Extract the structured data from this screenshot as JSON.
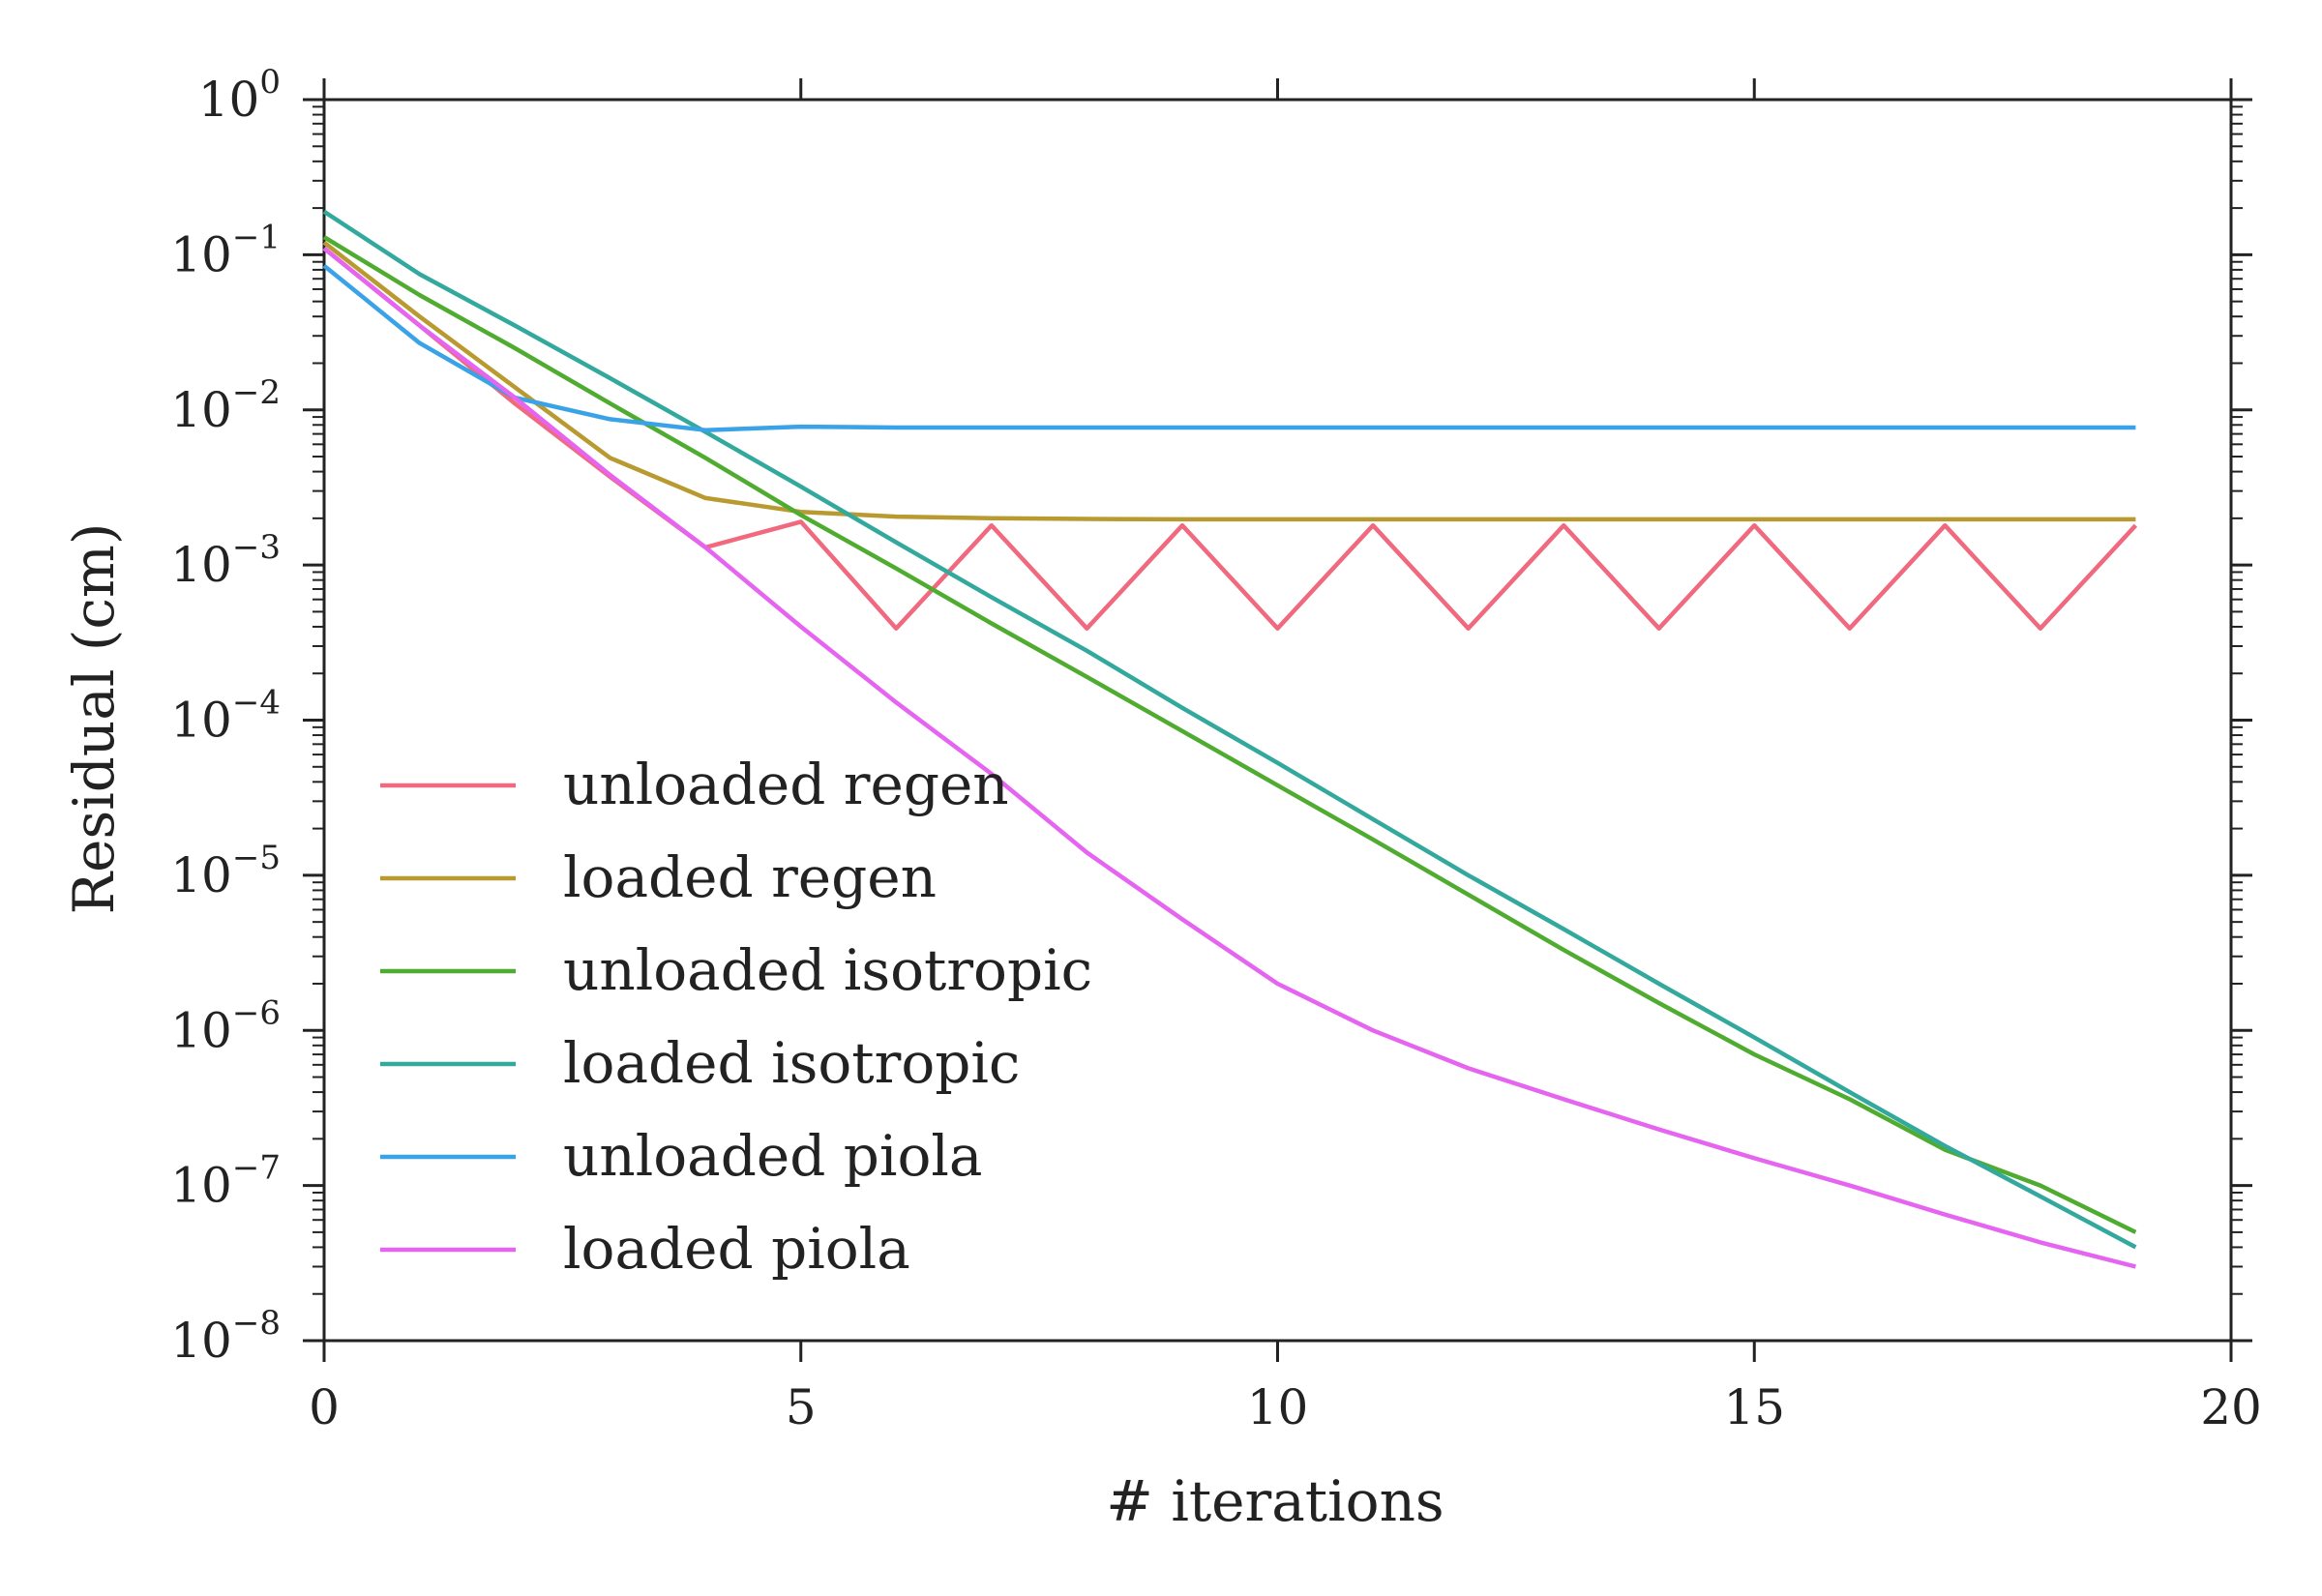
{
  "chart_data": {
    "type": "line",
    "xlabel": "# iterations",
    "ylabel": "Residual (cm)",
    "xlim": [
      0,
      20
    ],
    "ylim": [
      1e-08,
      1
    ],
    "yscale": "log",
    "xticks": [
      0,
      5,
      10,
      15,
      20
    ],
    "xtick_labels": [
      "0",
      "5",
      "10",
      "15",
      "20"
    ],
    "yticks": [
      {
        "base": "10",
        "exp": "0",
        "value": 1
      },
      {
        "base": "10",
        "exp": "−1",
        "value": 0.1
      },
      {
        "base": "10",
        "exp": "−2",
        "value": 0.01
      },
      {
        "base": "10",
        "exp": "−3",
        "value": 0.001
      },
      {
        "base": "10",
        "exp": "−4",
        "value": 0.0001
      },
      {
        "base": "10",
        "exp": "−5",
        "value": 1e-05
      },
      {
        "base": "10",
        "exp": "−6",
        "value": 1e-06
      },
      {
        "base": "10",
        "exp": "−7",
        "value": 1e-07
      },
      {
        "base": "10",
        "exp": "−8",
        "value": 1e-08
      }
    ],
    "grid": false,
    "legend_position": "lower-left",
    "x": [
      0,
      1,
      2,
      3,
      4,
      5,
      6,
      7,
      8,
      9,
      10,
      11,
      12,
      13,
      14,
      15,
      16,
      17,
      18,
      19
    ],
    "series": [
      {
        "name": "unloaded regen",
        "color": "#f0697f",
        "values": [
          0.11,
          0.035,
          0.011,
          0.0037,
          0.0013,
          0.0019,
          0.00039,
          0.0018,
          0.00039,
          0.0018,
          0.00039,
          0.0018,
          0.00039,
          0.0018,
          0.00039,
          0.0018,
          0.00039,
          0.0018,
          0.00039,
          0.0018
        ]
      },
      {
        "name": "loaded regen",
        "color": "#b89a30",
        "values": [
          0.12,
          0.04,
          0.014,
          0.0049,
          0.0027,
          0.0022,
          0.00205,
          0.002,
          0.00198,
          0.00197,
          0.00197,
          0.00197,
          0.00197,
          0.00197,
          0.00197,
          0.00197,
          0.00197,
          0.00197,
          0.00197,
          0.00197
        ]
      },
      {
        "name": "unloaded isotropic",
        "color": "#4fac30",
        "values": [
          0.13,
          0.055,
          0.025,
          0.011,
          0.0049,
          0.0021,
          0.00095,
          0.00042,
          0.00019,
          8.5e-05,
          3.8e-05,
          1.7e-05,
          7.5e-06,
          3.3e-06,
          1.5e-06,
          7e-07,
          3.6e-07,
          1.7e-07,
          1e-07,
          5e-08
        ]
      },
      {
        "name": "loaded isotropic",
        "color": "#33a99e",
        "values": [
          0.19,
          0.075,
          0.035,
          0.016,
          0.0072,
          0.0032,
          0.0014,
          0.00062,
          0.00028,
          0.00012,
          5.3e-05,
          2.3e-05,
          1e-05,
          4.5e-06,
          2e-06,
          9e-07,
          4e-07,
          1.8e-07,
          8.5e-08,
          4e-08
        ]
      },
      {
        "name": "unloaded piola",
        "color": "#3aa2e6",
        "values": [
          0.085,
          0.027,
          0.012,
          0.0087,
          0.0074,
          0.0078,
          0.0077,
          0.0077,
          0.0077,
          0.0077,
          0.0077,
          0.0077,
          0.0077,
          0.0077,
          0.0077,
          0.0077,
          0.0077,
          0.0077,
          0.0077,
          0.0077
        ]
      },
      {
        "name": "loaded piola",
        "color": "#e564f0",
        "values": [
          0.11,
          0.035,
          0.012,
          0.0038,
          0.0013,
          0.0004,
          0.00013,
          4.5e-05,
          1.4e-05,
          5.2e-06,
          2e-06,
          1e-06,
          5.7e-07,
          3.6e-07,
          2.3e-07,
          1.5e-07,
          1e-07,
          6.5e-08,
          4.3e-08,
          3e-08
        ]
      }
    ]
  }
}
